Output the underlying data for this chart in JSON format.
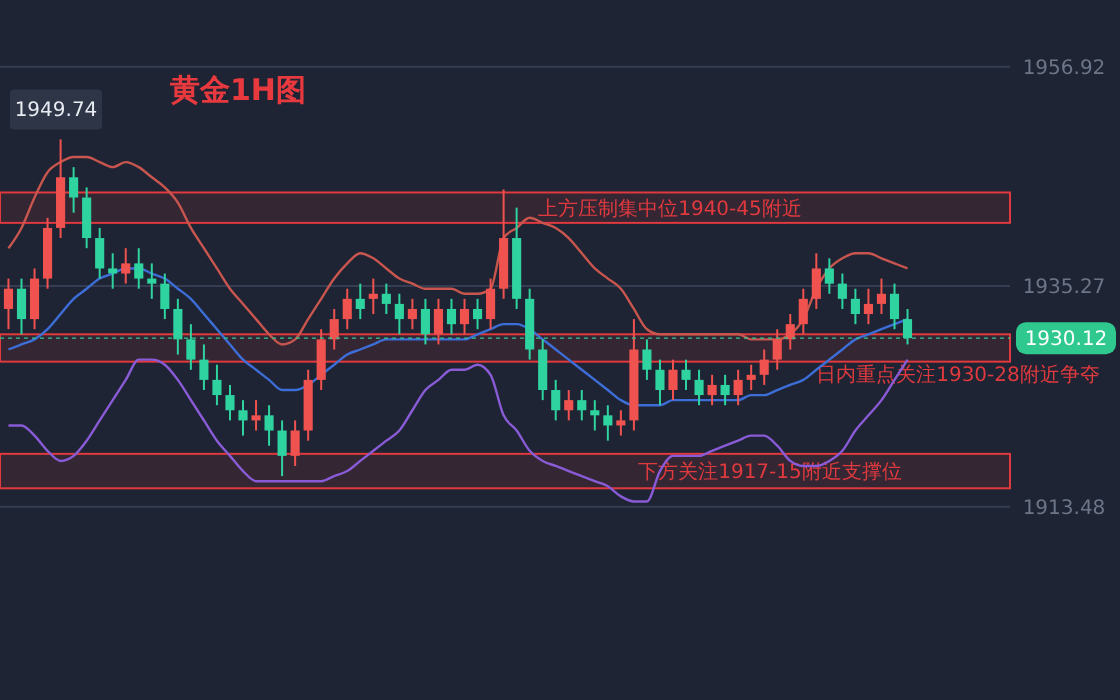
{
  "chart_data": {
    "type": "candlestick",
    "title": "黄金1H图",
    "categories": [
      null,
      null,
      null,
      null,
      null,
      null,
      null,
      null,
      null,
      null,
      null,
      null,
      null,
      null,
      null,
      null,
      null,
      null,
      null,
      null,
      null,
      null,
      null,
      null,
      null,
      null,
      null,
      null,
      null,
      null,
      null,
      null,
      null,
      null,
      null,
      null,
      null,
      null,
      null,
      null,
      null,
      null,
      null,
      null,
      null,
      null,
      null,
      null,
      null,
      null,
      null,
      null,
      null,
      null,
      null,
      null,
      null,
      null,
      null,
      null,
      null,
      null,
      null,
      null,
      null,
      null,
      null,
      null,
      null,
      null
    ],
    "ohlc": [
      [
        1933,
        1936,
        1931,
        1935
      ],
      [
        1935,
        1936,
        1930.5,
        1932
      ],
      [
        1932,
        1937,
        1931,
        1936
      ],
      [
        1936,
        1942,
        1935,
        1941
      ],
      [
        1941,
        1949.74,
        1940,
        1946
      ],
      [
        1946,
        1947,
        1942.5,
        1944
      ],
      [
        1944,
        1945,
        1939,
        1940
      ],
      [
        1940,
        1941,
        1936,
        1937
      ],
      [
        1937,
        1938.5,
        1935,
        1936.5
      ],
      [
        1936.5,
        1939,
        1935.5,
        1937.5
      ],
      [
        1937.5,
        1939,
        1935,
        1936
      ],
      [
        1936,
        1937.5,
        1934,
        1935.5
      ],
      [
        1935.5,
        1936.5,
        1932,
        1933
      ],
      [
        1933,
        1934,
        1928.5,
        1930
      ],
      [
        1930,
        1931.5,
        1927,
        1928
      ],
      [
        1928,
        1929.5,
        1925,
        1926
      ],
      [
        1926,
        1927.5,
        1923.5,
        1924.5
      ],
      [
        1924.5,
        1925.5,
        1922,
        1923
      ],
      [
        1923,
        1924,
        1920.5,
        1922
      ],
      [
        1922,
        1924,
        1921,
        1922.5
      ],
      [
        1922.5,
        1923.5,
        1919.5,
        1921
      ],
      [
        1921,
        1922,
        1916.5,
        1918.5
      ],
      [
        1918.5,
        1922,
        1917.5,
        1921
      ],
      [
        1921,
        1927,
        1920,
        1926
      ],
      [
        1926,
        1931,
        1925,
        1930
      ],
      [
        1930,
        1933,
        1929,
        1932
      ],
      [
        1932,
        1935,
        1931,
        1934
      ],
      [
        1934,
        1935.5,
        1932,
        1933
      ],
      [
        1934,
        1936,
        1932.5,
        1934.5
      ],
      [
        1934.5,
        1935.5,
        1932.5,
        1933.5
      ],
      [
        1933.5,
        1934.5,
        1930.5,
        1932
      ],
      [
        1932,
        1934,
        1931,
        1933
      ],
      [
        1933,
        1934,
        1929.5,
        1930.5
      ],
      [
        1930.5,
        1934,
        1929.5,
        1933
      ],
      [
        1933,
        1934,
        1930.5,
        1931.5
      ],
      [
        1931.5,
        1934,
        1930.5,
        1933
      ],
      [
        1933,
        1934,
        1931,
        1932
      ],
      [
        1932,
        1936,
        1931,
        1935
      ],
      [
        1935,
        1944.8,
        1934,
        1940
      ],
      [
        1940,
        1943,
        1933,
        1934
      ],
      [
        1934,
        1935,
        1928,
        1929
      ],
      [
        1929,
        1930,
        1924,
        1925
      ],
      [
        1925,
        1926,
        1922,
        1923
      ],
      [
        1923,
        1925,
        1922,
        1924
      ],
      [
        1924,
        1925,
        1922,
        1923
      ],
      [
        1923,
        1924,
        1921,
        1922.5
      ],
      [
        1922.5,
        1923.5,
        1920,
        1921.5
      ],
      [
        1921.5,
        1923,
        1920.5,
        1922
      ],
      [
        1922,
        1932,
        1921,
        1929
      ],
      [
        1929,
        1930,
        1926,
        1927
      ],
      [
        1927,
        1928,
        1923.5,
        1925
      ],
      [
        1925,
        1928,
        1924,
        1927
      ],
      [
        1927,
        1928,
        1925,
        1926
      ],
      [
        1926,
        1927,
        1923.5,
        1924.5
      ],
      [
        1924.5,
        1926.5,
        1923.5,
        1925.5
      ],
      [
        1925.5,
        1926.5,
        1923.5,
        1924.5
      ],
      [
        1924.5,
        1927,
        1923.5,
        1926
      ],
      [
        1926,
        1927.5,
        1925,
        1926.5
      ],
      [
        1926.5,
        1929,
        1925.5,
        1928
      ],
      [
        1928,
        1931,
        1927,
        1930
      ],
      [
        1930,
        1932.5,
        1929,
        1931.5
      ],
      [
        1931.5,
        1935,
        1930.5,
        1934
      ],
      [
        1934,
        1938.5,
        1933,
        1937
      ],
      [
        1937,
        1938,
        1934.5,
        1935.5
      ],
      [
        1935.5,
        1936.5,
        1933,
        1934
      ],
      [
        1934,
        1935,
        1931.5,
        1932.5
      ],
      [
        1932.5,
        1935,
        1931.5,
        1933.5
      ],
      [
        1933.5,
        1936,
        1932.5,
        1934.5
      ],
      [
        1934.5,
        1935.5,
        1931,
        1932
      ],
      [
        1932,
        1933,
        1929.5,
        1930.12
      ]
    ],
    "colors": [
      "#f0524f",
      "#2ed3a0",
      "#f0524f",
      "#f0524f",
      "#f0524f",
      "#2ed3a0",
      "#2ed3a0",
      "#2ed3a0",
      "#2ed3a0",
      "#f0524f",
      "#2ed3a0",
      "#2ed3a0",
      "#2ed3a0",
      "#2ed3a0",
      "#2ed3a0",
      "#2ed3a0",
      "#2ed3a0",
      "#2ed3a0",
      "#2ed3a0",
      "#f0524f",
      "#2ed3a0",
      "#2ed3a0",
      "#f0524f",
      "#f0524f",
      "#f0524f",
      "#f0524f",
      "#f0524f",
      "#2ed3a0",
      "#f0524f",
      "#2ed3a0",
      "#2ed3a0",
      "#f0524f",
      "#2ed3a0",
      "#f0524f",
      "#2ed3a0",
      "#f0524f",
      "#2ed3a0",
      "#f0524f",
      "#f0524f",
      "#2ed3a0",
      "#2ed3a0",
      "#2ed3a0",
      "#2ed3a0",
      "#f0524f",
      "#2ed3a0",
      "#2ed3a0",
      "#2ed3a0",
      "#f0524f",
      "#f0524f",
      "#2ed3a0",
      "#2ed3a0",
      "#f0524f",
      "#2ed3a0",
      "#2ed3a0",
      "#f0524f",
      "#2ed3a0",
      "#f0524f",
      "#f0524f",
      "#f0524f",
      "#f0524f",
      "#f0524f",
      "#f0524f",
      "#f0524f",
      "#2ed3a0",
      "#2ed3a0",
      "#2ed3a0",
      "#f0524f",
      "#f0524f",
      "#2ed3a0",
      "#2ed3a0"
    ],
    "series": [
      {
        "type": "line",
        "color": "#c8564f",
        "values": [
          1939,
          1941,
          1944,
          1946.5,
          1947.5,
          1948,
          1948,
          1947.5,
          1947,
          1947.5,
          1947,
          1946,
          1945,
          1943.5,
          1941,
          1939,
          1937,
          1935,
          1933.5,
          1932,
          1930.5,
          1929.5,
          1930,
          1932,
          1934,
          1936,
          1937.5,
          1938.5,
          1938,
          1937,
          1936,
          1935.5,
          1935,
          1935,
          1935,
          1934.5,
          1934.5,
          1935,
          1940,
          1941,
          1942,
          1941.5,
          1941,
          1940,
          1938.5,
          1937,
          1936,
          1935,
          1933,
          1931,
          1930.5,
          1930.5,
          1930.5,
          1930.5,
          1930.5,
          1930.5,
          1930.5,
          1930,
          1930,
          1930,
          1930.5,
          1932,
          1935,
          1937,
          1938,
          1938.5,
          1938.5,
          1938,
          1937.5,
          1937
        ]
      },
      {
        "type": "line",
        "color": "#3d6ed8",
        "values": [
          1929,
          1929.5,
          1930,
          1931,
          1932.5,
          1934,
          1935,
          1936,
          1936.5,
          1937,
          1937,
          1936.5,
          1936,
          1935,
          1934,
          1932.5,
          1931,
          1929.5,
          1928,
          1927,
          1926,
          1925,
          1925,
          1925.5,
          1926.5,
          1927.5,
          1928.5,
          1929,
          1929.5,
          1930,
          1930,
          1930,
          1930,
          1930,
          1930,
          1930,
          1930.5,
          1931,
          1931.5,
          1931.5,
          1931,
          1930,
          1929,
          1928,
          1927,
          1926,
          1925,
          1924,
          1923.5,
          1923.5,
          1923.5,
          1924,
          1924,
          1924,
          1924,
          1924,
          1924,
          1924.5,
          1924.5,
          1925,
          1925.5,
          1926,
          1927,
          1928,
          1929,
          1930,
          1930.5,
          1931,
          1931.5,
          1932
        ]
      },
      {
        "type": "line",
        "color": "#8a5bd6",
        "values": [
          1921.5,
          1921.5,
          1920.5,
          1919,
          1918,
          1918.5,
          1920,
          1922,
          1924,
          1926,
          1928,
          1928,
          1927.5,
          1926,
          1924,
          1922,
          1920,
          1918.5,
          1917,
          1916,
          1916,
          1916,
          1916,
          1916,
          1916,
          1916.5,
          1917,
          1918,
          1919,
          1920,
          1921,
          1923,
          1925,
          1926,
          1927,
          1927,
          1927.5,
          1926.5,
          1922.5,
          1921,
          1919,
          1918,
          1917.5,
          1917,
          1916.5,
          1916,
          1915.5,
          1914.5,
          1914,
          1914,
          1917,
          1918.5,
          1918.5,
          1918.5,
          1919,
          1919.5,
          1920,
          1920.5,
          1920.5,
          1919.5,
          1918,
          1917.5,
          1917.5,
          1918,
          1919,
          1921,
          1922.5,
          1924,
          1926,
          1928
        ]
      }
    ],
    "ylim": [
      1894.4,
      1963.5
    ],
    "yticks": [
      1913.48,
      1935.27,
      1956.92
    ],
    "grid": "y",
    "bands": [
      {
        "axis": "y",
        "from": 1941.5,
        "to": 1944.5,
        "label": "上方压制集中位1940-45附近",
        "color": "#e0393e"
      },
      {
        "axis": "y",
        "from": 1927.8,
        "to": 1930.5,
        "label": "日内重点关注1930-28附近争夺",
        "color": "#e0393e"
      },
      {
        "axis": "y",
        "from": 1915.3,
        "to": 1918.7,
        "label": "下方关注1917-15附近支撑位",
        "color": "#e0393e"
      }
    ],
    "ref_lines": [
      {
        "axis": "y",
        "value": 1930.12,
        "label": "1930.12",
        "color": "#2fc98f"
      }
    ],
    "annotations": [
      {
        "text": "1949.74",
        "y": 1949.74
      }
    ]
  }
}
